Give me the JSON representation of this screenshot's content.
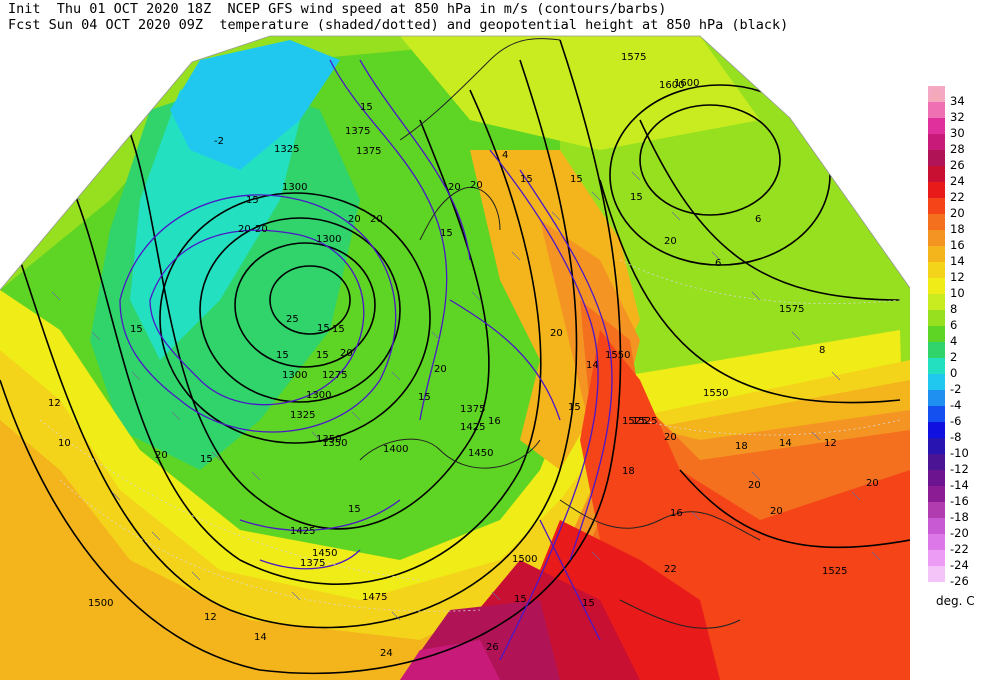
{
  "header": {
    "line1": "Init  Thu 01 OCT 2020 18Z  NCEP GFS wind speed at 850 hPa in m/s (contours/barbs)",
    "line2": "Fcst Sun 04 OCT 2020 09Z  temperature (shaded/dotted) and geopotential height at 850 hPa (black)"
  },
  "legend": {
    "unit": "deg. C",
    "top_color": "#f4a8b8",
    "bins": [
      {
        "label": "34",
        "color": "#f4a8c4"
      },
      {
        "label": "32",
        "color": "#f070b4"
      },
      {
        "label": "30",
        "color": "#e0309c"
      },
      {
        "label": "28",
        "color": "#c81a78"
      },
      {
        "label": "26",
        "color": "#b01456"
      },
      {
        "label": "24",
        "color": "#c81032"
      },
      {
        "label": "22",
        "color": "#e81a1a"
      },
      {
        "label": "20",
        "color": "#f44418"
      },
      {
        "label": "18",
        "color": "#f4701e"
      },
      {
        "label": "16",
        "color": "#f49422"
      },
      {
        "label": "14",
        "color": "#f4b41c"
      },
      {
        "label": "12",
        "color": "#f4d41a"
      },
      {
        "label": "10",
        "color": "#f0ec18"
      },
      {
        "label": "8",
        "color": "#c8ec20"
      },
      {
        "label": "6",
        "color": "#96e020"
      },
      {
        "label": "4",
        "color": "#5ed424"
      },
      {
        "label": "2",
        "color": "#30d46a"
      },
      {
        "label": "0",
        "color": "#22e0c0"
      },
      {
        "label": "-2",
        "color": "#20c8f0"
      },
      {
        "label": "-4",
        "color": "#2090f0"
      },
      {
        "label": "-6",
        "color": "#1450f0"
      },
      {
        "label": "-8",
        "color": "#1010e0"
      },
      {
        "label": "-10",
        "color": "#2814b0"
      },
      {
        "label": "-12",
        "color": "#4a1494"
      },
      {
        "label": "-14",
        "color": "#6c1490"
      },
      {
        "label": "-16",
        "color": "#8c1c94"
      },
      {
        "label": "-18",
        "color": "#b03cb0"
      },
      {
        "label": "-20",
        "color": "#c85ad4"
      },
      {
        "label": "-22",
        "color": "#dc78e8"
      },
      {
        "label": "-24",
        "color": "#ec9cf4"
      },
      {
        "label": "-26",
        "color": "#f4c4f8"
      }
    ]
  },
  "map": {
    "height_labels": [
      "1375",
      "1600",
      "1325",
      "1375",
      "1300",
      "1300",
      "1575",
      "1600",
      "1350",
      "1300",
      "1375",
      "1275",
      "1300",
      "1325",
      "1350",
      "1400",
      "1375",
      "1425",
      "1450",
      "1500",
      "1525",
      "1550",
      "1550",
      "1575",
      "1425",
      "1450",
      "1475",
      "1500",
      "1525",
      "1525"
    ],
    "wind_labels": [
      "15",
      "20",
      "15",
      "20",
      "15",
      "15",
      "20",
      "20",
      "15",
      "20",
      "25",
      "15",
      "20",
      "15",
      "20",
      "20",
      "15",
      "20",
      "15",
      "15",
      "15",
      "20",
      "15",
      "15",
      "20",
      "15",
      "15",
      "15",
      "15"
    ],
    "temp_labels": [
      "-2",
      "4",
      "6",
      "6",
      "8",
      "14",
      "16",
      "18",
      "20",
      "16",
      "12",
      "14",
      "18",
      "20",
      "22",
      "24",
      "26",
      "12",
      "10",
      "12",
      "14",
      "20",
      "20"
    ]
  }
}
